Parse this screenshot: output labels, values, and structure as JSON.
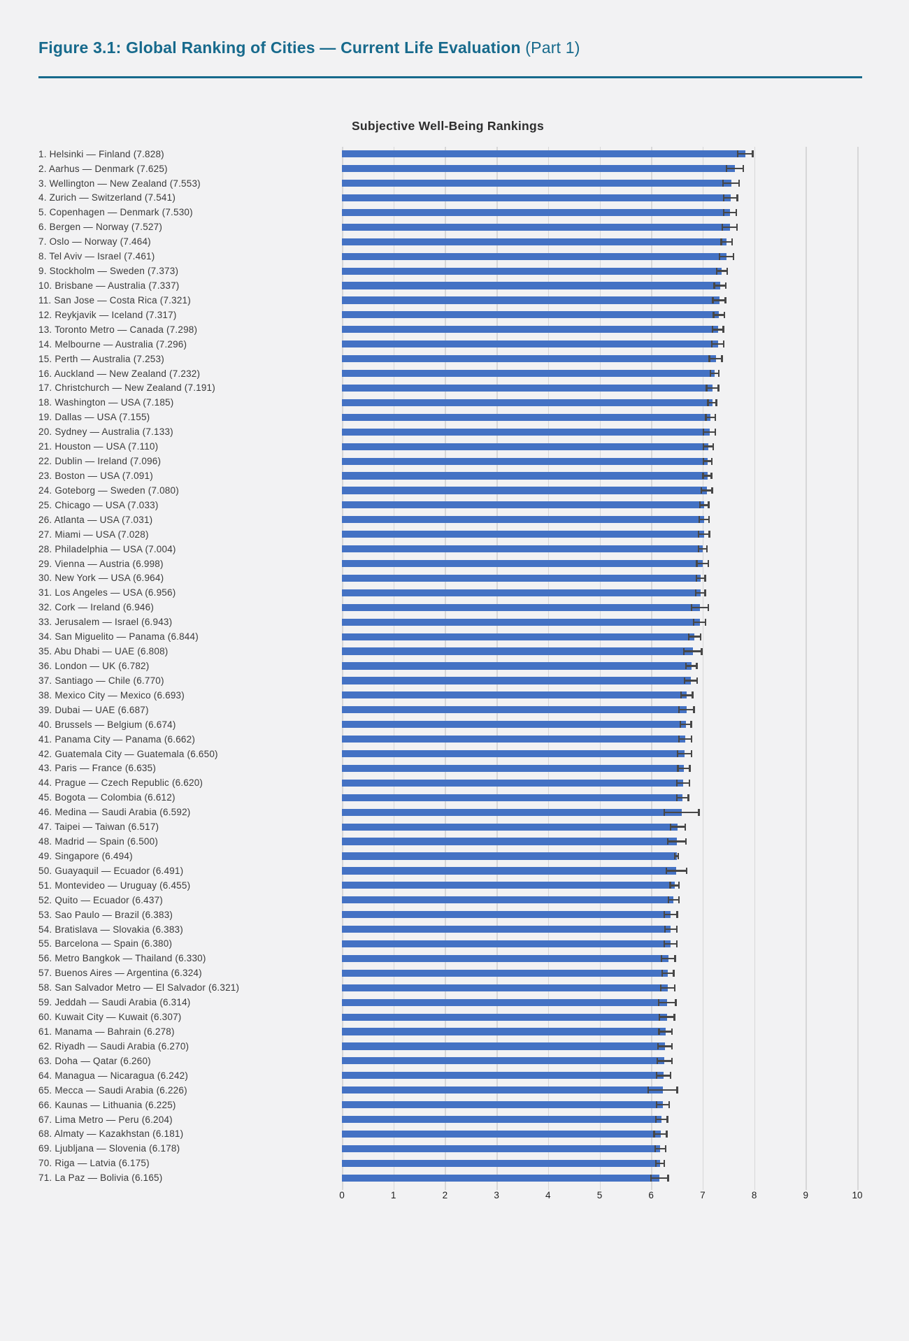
{
  "header": {
    "title_bold": "Figure 3.1: Global Ranking of Cities — Current Life Evaluation",
    "title_suffix": " (Part 1)"
  },
  "chart": {
    "subtitle": "Subjective Well-Being Rankings"
  },
  "colors": {
    "bg": "#f2f2f3",
    "accent": "#176a8c",
    "bar": "#4472c4",
    "err": "#474747",
    "grid": "#d7d7d8",
    "text-dark": "#2e2e2e",
    "label": "#3a3a3a"
  },
  "chart_data": {
    "type": "bar",
    "orientation": "horizontal",
    "title": "Subjective Well-Being Rankings",
    "xlabel": "",
    "ylabel": "",
    "xlim": [
      0,
      10
    ],
    "x_ticks": [
      0,
      1,
      2,
      3,
      4,
      5,
      6,
      7,
      8,
      9,
      10
    ],
    "grid": true,
    "error_bars": true,
    "legend": "none",
    "cities": [
      {
        "rank": 1,
        "label": "1. Helsinki — Finland (7.828)",
        "city": "Helsinki",
        "country": "Finland",
        "value": 7.828,
        "err": 0.16
      },
      {
        "rank": 2,
        "label": "2. Aarhus — Denmark (7.625)",
        "city": "Aarhus",
        "country": "Denmark",
        "value": 7.625,
        "err": 0.18
      },
      {
        "rank": 3,
        "label": "3. Wellington — New Zealand (7.553)",
        "city": "Wellington",
        "country": "New Zealand",
        "value": 7.553,
        "err": 0.17
      },
      {
        "rank": 4,
        "label": "4. Zurich — Switzerland (7.541)",
        "city": "Zurich",
        "country": "Switzerland",
        "value": 7.541,
        "err": 0.15
      },
      {
        "rank": 5,
        "label": "5. Copenhagen — Denmark (7.530)",
        "city": "Copenhagen",
        "country": "Denmark",
        "value": 7.53,
        "err": 0.14
      },
      {
        "rank": 6,
        "label": "6. Bergen — Norway (7.527)",
        "city": "Bergen",
        "country": "Norway",
        "value": 7.527,
        "err": 0.16
      },
      {
        "rank": 7,
        "label": "7. Oslo — Norway (7.464)",
        "city": "Oslo",
        "country": "Norway",
        "value": 7.464,
        "err": 0.12
      },
      {
        "rank": 8,
        "label": "8. Tel Aviv — Israel (7.461)",
        "city": "Tel Aviv",
        "country": "Israel",
        "value": 7.461,
        "err": 0.15
      },
      {
        "rank": 9,
        "label": "9. Stockholm — Sweden (7.373)",
        "city": "Stockholm",
        "country": "Sweden",
        "value": 7.373,
        "err": 0.12
      },
      {
        "rank": 10,
        "label": "10. Brisbane — Australia (7.337)",
        "city": "Brisbane",
        "country": "Australia",
        "value": 7.337,
        "err": 0.13
      },
      {
        "rank": 11,
        "label": "11. San Jose — Costa Rica (7.321)",
        "city": "San Jose",
        "country": "Costa Rica",
        "value": 7.321,
        "err": 0.14
      },
      {
        "rank": 12,
        "label": "12. Reykjavik — Iceland (7.317)",
        "city": "Reykjavik",
        "country": "Iceland",
        "value": 7.317,
        "err": 0.12
      },
      {
        "rank": 13,
        "label": "13. Toronto Metro — Canada (7.298)",
        "city": "Toronto Metro",
        "country": "Canada",
        "value": 7.298,
        "err": 0.12
      },
      {
        "rank": 14,
        "label": "14. Melbourne — Australia (7.296)",
        "city": "Melbourne",
        "country": "Australia",
        "value": 7.296,
        "err": 0.13
      },
      {
        "rank": 15,
        "label": "15. Perth — Australia (7.253)",
        "city": "Perth",
        "country": "Australia",
        "value": 7.253,
        "err": 0.14
      },
      {
        "rank": 16,
        "label": "16. Auckland — New Zealand (7.232)",
        "city": "Auckland",
        "country": "New Zealand",
        "value": 7.232,
        "err": 0.1
      },
      {
        "rank": 17,
        "label": "17. Christchurch — New Zealand (7.191)",
        "city": "Christchurch",
        "country": "New Zealand",
        "value": 7.191,
        "err": 0.13
      },
      {
        "rank": 18,
        "label": "18. Washington — USA (7.185)",
        "city": "Washington",
        "country": "USA",
        "value": 7.185,
        "err": 0.1
      },
      {
        "rank": 19,
        "label": "19. Dallas — USA (7.155)",
        "city": "Dallas",
        "country": "USA",
        "value": 7.155,
        "err": 0.11
      },
      {
        "rank": 20,
        "label": "20. Sydney — Australia (7.133)",
        "city": "Sydney",
        "country": "Australia",
        "value": 7.133,
        "err": 0.13
      },
      {
        "rank": 21,
        "label": "21. Houston — USA (7.110)",
        "city": "Houston",
        "country": "USA",
        "value": 7.11,
        "err": 0.11
      },
      {
        "rank": 22,
        "label": "22. Dublin — Ireland (7.096)",
        "city": "Dublin",
        "country": "Ireland",
        "value": 7.096,
        "err": 0.1
      },
      {
        "rank": 23,
        "label": "23. Boston — USA (7.091)",
        "city": "Boston",
        "country": "USA",
        "value": 7.091,
        "err": 0.1
      },
      {
        "rank": 24,
        "label": "24. Goteborg — Sweden (7.080)",
        "city": "Goteborg",
        "country": "Sweden",
        "value": 7.08,
        "err": 0.12
      },
      {
        "rank": 25,
        "label": "25. Chicago — USA (7.033)",
        "city": "Chicago",
        "country": "USA",
        "value": 7.033,
        "err": 0.1
      },
      {
        "rank": 26,
        "label": "26. Atlanta — USA (7.031)",
        "city": "Atlanta",
        "country": "USA",
        "value": 7.031,
        "err": 0.11
      },
      {
        "rank": 27,
        "label": "27. Miami — USA (7.028)",
        "city": "Miami",
        "country": "USA",
        "value": 7.028,
        "err": 0.12
      },
      {
        "rank": 28,
        "label": "28. Philadelphia — USA (7.004)",
        "city": "Philadelphia",
        "country": "USA",
        "value": 7.004,
        "err": 0.1
      },
      {
        "rank": 29,
        "label": "29. Vienna — Austria (6.998)",
        "city": "Vienna",
        "country": "Austria",
        "value": 6.998,
        "err": 0.13
      },
      {
        "rank": 30,
        "label": "30. New York — USA (6.964)",
        "city": "New York",
        "country": "USA",
        "value": 6.964,
        "err": 0.1
      },
      {
        "rank": 31,
        "label": "31. Los Angeles — USA (6.956)",
        "city": "Los Angeles",
        "country": "USA",
        "value": 6.956,
        "err": 0.11
      },
      {
        "rank": 32,
        "label": "32. Cork — Ireland (6.946)",
        "city": "Cork",
        "country": "Ireland",
        "value": 6.946,
        "err": 0.18
      },
      {
        "rank": 33,
        "label": "33. Jerusalem — Israel (6.943)",
        "city": "Jerusalem",
        "country": "Israel",
        "value": 6.943,
        "err": 0.13
      },
      {
        "rank": 34,
        "label": "34. San Miguelito — Panama (6.844)",
        "city": "San Miguelito",
        "country": "Panama",
        "value": 6.844,
        "err": 0.13
      },
      {
        "rank": 35,
        "label": "35. Abu Dhabi — UAE (6.808)",
        "city": "Abu Dhabi",
        "country": "UAE",
        "value": 6.808,
        "err": 0.19
      },
      {
        "rank": 36,
        "label": "36. London — UK (6.782)",
        "city": "London",
        "country": "UK",
        "value": 6.782,
        "err": 0.12
      },
      {
        "rank": 37,
        "label": "37. Santiago — Chile (6.770)",
        "city": "Santiago",
        "country": "Chile",
        "value": 6.77,
        "err": 0.14
      },
      {
        "rank": 38,
        "label": "38. Mexico City — Mexico (6.693)",
        "city": "Mexico City",
        "country": "Mexico",
        "value": 6.693,
        "err": 0.13
      },
      {
        "rank": 39,
        "label": "39. Dubai — UAE (6.687)",
        "city": "Dubai",
        "country": "UAE",
        "value": 6.687,
        "err": 0.16
      },
      {
        "rank": 40,
        "label": "40. Brussels — Belgium (6.674)",
        "city": "Brussels",
        "country": "Belgium",
        "value": 6.674,
        "err": 0.12
      },
      {
        "rank": 41,
        "label": "41. Panama City — Panama (6.662)",
        "city": "Panama City",
        "country": "Panama",
        "value": 6.662,
        "err": 0.14
      },
      {
        "rank": 42,
        "label": "42. Guatemala City — Guatemala (6.650)",
        "city": "Guatemala City",
        "country": "Guatemala",
        "value": 6.65,
        "err": 0.15
      },
      {
        "rank": 43,
        "label": "43. Paris — France (6.635)",
        "city": "Paris",
        "country": "France",
        "value": 6.635,
        "err": 0.13
      },
      {
        "rank": 44,
        "label": "44. Prague — Czech Republic (6.620)",
        "city": "Prague",
        "country": "Czech Republic",
        "value": 6.62,
        "err": 0.14
      },
      {
        "rank": 45,
        "label": "45. Bogota — Colombia (6.612)",
        "city": "Bogota",
        "country": "Colombia",
        "value": 6.612,
        "err": 0.13
      },
      {
        "rank": 46,
        "label": "46. Medina — Saudi Arabia (6.592)",
        "city": "Medina",
        "country": "Saudi Arabia",
        "value": 6.592,
        "err": 0.35
      },
      {
        "rank": 47,
        "label": "47. Taipei — Taiwan (6.517)",
        "city": "Taipei",
        "country": "Taiwan",
        "value": 6.517,
        "err": 0.16
      },
      {
        "rank": 48,
        "label": "48. Madrid — Spain (6.500)",
        "city": "Madrid",
        "country": "Spain",
        "value": 6.5,
        "err": 0.19
      },
      {
        "rank": 49,
        "label": "49. Singapore (6.494)",
        "city": "Singapore",
        "country": "",
        "value": 6.494,
        "err": 0.05
      },
      {
        "rank": 50,
        "label": "50. Guayaquil — Ecuador (6.491)",
        "city": "Guayaquil",
        "country": "Ecuador",
        "value": 6.491,
        "err": 0.21
      },
      {
        "rank": 51,
        "label": "51. Montevideo — Uruguay (6.455)",
        "city": "Montevideo",
        "country": "Uruguay",
        "value": 6.455,
        "err": 0.1
      },
      {
        "rank": 52,
        "label": "52. Quito — Ecuador (6.437)",
        "city": "Quito",
        "country": "Ecuador",
        "value": 6.437,
        "err": 0.12
      },
      {
        "rank": 53,
        "label": "53. Sao Paulo — Brazil (6.383)",
        "city": "Sao Paulo",
        "country": "Brazil",
        "value": 6.383,
        "err": 0.14
      },
      {
        "rank": 54,
        "label": "54. Bratislava — Slovakia (6.383)",
        "city": "Bratislava",
        "country": "Slovakia",
        "value": 6.383,
        "err": 0.13
      },
      {
        "rank": 55,
        "label": "55. Barcelona — Spain (6.380)",
        "city": "Barcelona",
        "country": "Spain",
        "value": 6.38,
        "err": 0.14
      },
      {
        "rank": 56,
        "label": "56. Metro Bangkok — Thailand (6.330)",
        "city": "Metro Bangkok",
        "country": "Thailand",
        "value": 6.33,
        "err": 0.15
      },
      {
        "rank": 57,
        "label": "57. Buenos Aires — Argentina (6.324)",
        "city": "Buenos Aires",
        "country": "Argentina",
        "value": 6.324,
        "err": 0.13
      },
      {
        "rank": 58,
        "label": "58. San Salvador Metro — El Salvador (6.321)",
        "city": "San Salvador Metro",
        "country": "El Salvador",
        "value": 6.321,
        "err": 0.15
      },
      {
        "rank": 59,
        "label": "59. Jeddah — Saudi Arabia (6.314)",
        "city": "Jeddah",
        "country": "Saudi Arabia",
        "value": 6.314,
        "err": 0.18
      },
      {
        "rank": 60,
        "label": "60. Kuwait City — Kuwait (6.307)",
        "city": "Kuwait City",
        "country": "Kuwait",
        "value": 6.307,
        "err": 0.16
      },
      {
        "rank": 61,
        "label": "61. Manama — Bahrain (6.278)",
        "city": "Manama",
        "country": "Bahrain",
        "value": 6.278,
        "err": 0.14
      },
      {
        "rank": 62,
        "label": "62. Riyadh — Saudi Arabia (6.270)",
        "city": "Riyadh",
        "country": "Saudi Arabia",
        "value": 6.27,
        "err": 0.15
      },
      {
        "rank": 63,
        "label": "63. Doha — Qatar (6.260)",
        "city": "Doha",
        "country": "Qatar",
        "value": 6.26,
        "err": 0.16
      },
      {
        "rank": 64,
        "label": "64. Managua — Nicaragua (6.242)",
        "city": "Managua",
        "country": "Nicaragua",
        "value": 6.242,
        "err": 0.15
      },
      {
        "rank": 65,
        "label": "65. Mecca — Saudi Arabia (6.226)",
        "city": "Mecca",
        "country": "Saudi Arabia",
        "value": 6.226,
        "err": 0.3
      },
      {
        "rank": 66,
        "label": "66. Kaunas — Lithuania (6.225)",
        "city": "Kaunas",
        "country": "Lithuania",
        "value": 6.225,
        "err": 0.14
      },
      {
        "rank": 67,
        "label": "67. Lima Metro — Peru (6.204)",
        "city": "Lima Metro",
        "country": "Peru",
        "value": 6.204,
        "err": 0.13
      },
      {
        "rank": 68,
        "label": "68. Almaty — Kazakhstan (6.181)",
        "city": "Almaty",
        "country": "Kazakhstan",
        "value": 6.181,
        "err": 0.14
      },
      {
        "rank": 69,
        "label": "69. Ljubljana — Slovenia (6.178)",
        "city": "Ljubljana",
        "country": "Slovenia",
        "value": 6.178,
        "err": 0.12
      },
      {
        "rank": 70,
        "label": "70. Riga — Latvia (6.175)",
        "city": "Riga",
        "country": "Latvia",
        "value": 6.175,
        "err": 0.1
      },
      {
        "rank": 71,
        "label": "71. La Paz — Bolivia (6.165)",
        "city": "La Paz",
        "country": "Bolivia",
        "value": 6.165,
        "err": 0.18
      }
    ]
  }
}
